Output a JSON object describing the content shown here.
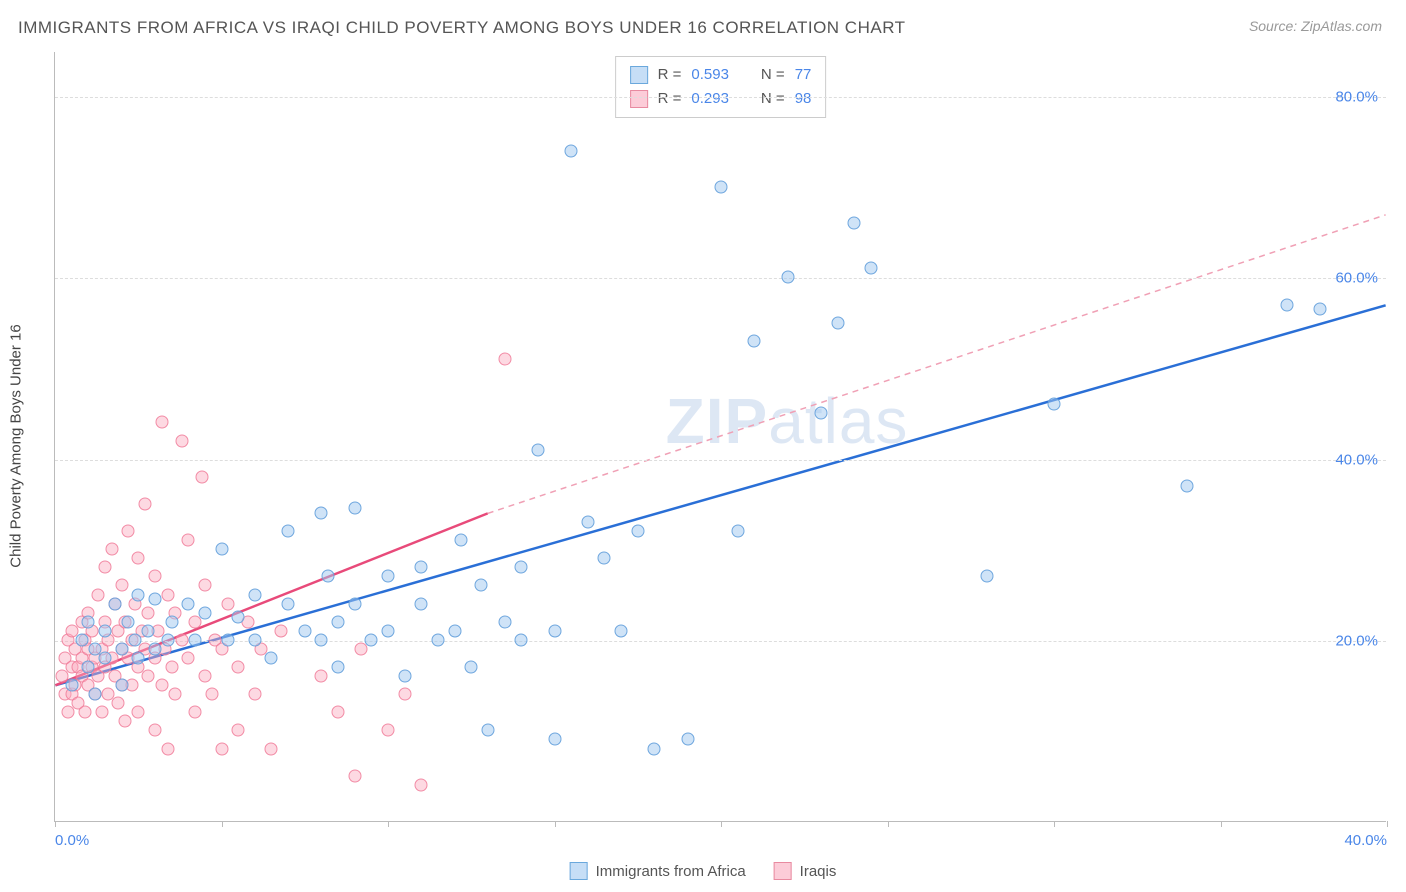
{
  "title": "IMMIGRANTS FROM AFRICA VS IRAQI CHILD POVERTY AMONG BOYS UNDER 16 CORRELATION CHART",
  "source_label": "Source: ",
  "source_value": "ZipAtlas.com",
  "y_axis_label": "Child Poverty Among Boys Under 16",
  "watermark_bold": "ZIP",
  "watermark_light": "atlas",
  "chart": {
    "type": "scatter",
    "xlim": [
      0,
      40
    ],
    "ylim": [
      0,
      85
    ],
    "x_ticks": [
      0,
      5,
      10,
      15,
      20,
      25,
      30,
      35,
      40
    ],
    "x_tick_labels": {
      "0": "0.0%",
      "40": "40.0%"
    },
    "y_ticks": [
      20,
      40,
      60,
      80
    ],
    "y_tick_labels": {
      "20": "20.0%",
      "40": "40.0%",
      "60": "60.0%",
      "80": "80.0%"
    },
    "background_color": "#ffffff",
    "grid_color": "#dddddd",
    "axis_color": "#bbbbbb",
    "tick_label_color": "#4a86e8",
    "series": [
      {
        "name": "Immigrants from Africa",
        "color_fill": "rgba(160,200,240,0.5)",
        "color_stroke": "#6aa8dc",
        "class": "blue",
        "R": 0.593,
        "N": 77,
        "trend": {
          "x1": 0,
          "y1": 15,
          "x2": 40,
          "y2": 57,
          "color": "#2a6fd6",
          "width": 2.5,
          "dash": "none"
        },
        "points": [
          [
            0.5,
            15
          ],
          [
            0.8,
            20
          ],
          [
            1,
            17
          ],
          [
            1,
            22
          ],
          [
            1.2,
            14
          ],
          [
            1.2,
            19
          ],
          [
            1.5,
            18
          ],
          [
            1.5,
            21
          ],
          [
            1.8,
            24
          ],
          [
            2,
            19
          ],
          [
            2,
            15
          ],
          [
            2.2,
            22
          ],
          [
            2.4,
            20
          ],
          [
            2.5,
            25
          ],
          [
            2.5,
            18
          ],
          [
            2.8,
            21
          ],
          [
            3,
            19
          ],
          [
            3,
            24.5
          ],
          [
            3.4,
            20
          ],
          [
            3.5,
            22
          ],
          [
            4,
            24
          ],
          [
            4.2,
            20
          ],
          [
            4.5,
            23
          ],
          [
            5,
            30
          ],
          [
            5.2,
            20
          ],
          [
            5.5,
            22.5
          ],
          [
            6,
            20
          ],
          [
            6,
            25
          ],
          [
            6.5,
            18
          ],
          [
            7,
            24
          ],
          [
            7,
            32
          ],
          [
            7.5,
            21
          ],
          [
            8,
            20
          ],
          [
            8,
            34
          ],
          [
            8.2,
            27
          ],
          [
            8.5,
            17
          ],
          [
            8.5,
            22
          ],
          [
            9,
            24
          ],
          [
            9,
            34.5
          ],
          [
            9.5,
            20
          ],
          [
            10,
            27
          ],
          [
            10,
            21
          ],
          [
            10.5,
            16
          ],
          [
            11,
            24
          ],
          [
            11,
            28
          ],
          [
            11.5,
            20
          ],
          [
            12,
            21
          ],
          [
            12.2,
            31
          ],
          [
            12.5,
            17
          ],
          [
            12.8,
            26
          ],
          [
            13,
            10
          ],
          [
            13.5,
            22
          ],
          [
            14,
            20
          ],
          [
            14,
            28
          ],
          [
            14.5,
            41
          ],
          [
            15,
            21
          ],
          [
            15,
            9
          ],
          [
            15.5,
            74
          ],
          [
            16,
            33
          ],
          [
            16.5,
            29
          ],
          [
            17,
            21
          ],
          [
            17.5,
            32
          ],
          [
            18,
            8
          ],
          [
            19,
            9
          ],
          [
            20,
            70
          ],
          [
            20.5,
            32
          ],
          [
            21,
            53
          ],
          [
            22,
            60
          ],
          [
            23,
            45
          ],
          [
            23.5,
            55
          ],
          [
            24,
            66
          ],
          [
            24.5,
            61
          ],
          [
            28,
            27
          ],
          [
            30,
            46
          ],
          [
            34,
            37
          ],
          [
            37,
            57
          ],
          [
            38,
            56.5
          ]
        ]
      },
      {
        "name": "Iraqis",
        "color_fill": "rgba(250,170,190,0.45)",
        "color_stroke": "#e88aa0",
        "class": "pink",
        "R": 0.293,
        "N": 98,
        "trend": {
          "x1": 0,
          "y1": 15,
          "x2": 13,
          "y2": 34,
          "color": "#e84a7a",
          "width": 2.5,
          "dash": "none",
          "ext_x2": 40,
          "ext_y2": 67,
          "ext_dash": "6,5",
          "ext_color": "#f0a0b5",
          "ext_width": 1.5
        },
        "points": [
          [
            0.2,
            16
          ],
          [
            0.3,
            14
          ],
          [
            0.3,
            18
          ],
          [
            0.4,
            20
          ],
          [
            0.4,
            12
          ],
          [
            0.5,
            17
          ],
          [
            0.5,
            21
          ],
          [
            0.5,
            14
          ],
          [
            0.6,
            19
          ],
          [
            0.6,
            15
          ],
          [
            0.7,
            17
          ],
          [
            0.7,
            13
          ],
          [
            0.8,
            18
          ],
          [
            0.8,
            22
          ],
          [
            0.8,
            16
          ],
          [
            0.9,
            20
          ],
          [
            0.9,
            12
          ],
          [
            1,
            19
          ],
          [
            1,
            15
          ],
          [
            1,
            23
          ],
          [
            1.1,
            17
          ],
          [
            1.1,
            21
          ],
          [
            1.2,
            14
          ],
          [
            1.2,
            18
          ],
          [
            1.3,
            25
          ],
          [
            1.3,
            16
          ],
          [
            1.4,
            19
          ],
          [
            1.4,
            12
          ],
          [
            1.5,
            22
          ],
          [
            1.5,
            17
          ],
          [
            1.5,
            28
          ],
          [
            1.6,
            20
          ],
          [
            1.6,
            14
          ],
          [
            1.7,
            18
          ],
          [
            1.7,
            30
          ],
          [
            1.8,
            16
          ],
          [
            1.8,
            24
          ],
          [
            1.9,
            21
          ],
          [
            1.9,
            13
          ],
          [
            2,
            19
          ],
          [
            2,
            26
          ],
          [
            2,
            15
          ],
          [
            2.1,
            22
          ],
          [
            2.1,
            11
          ],
          [
            2.2,
            18
          ],
          [
            2.2,
            32
          ],
          [
            2.3,
            20
          ],
          [
            2.3,
            15
          ],
          [
            2.4,
            24
          ],
          [
            2.5,
            17
          ],
          [
            2.5,
            29
          ],
          [
            2.5,
            12
          ],
          [
            2.6,
            21
          ],
          [
            2.7,
            19
          ],
          [
            2.7,
            35
          ],
          [
            2.8,
            16
          ],
          [
            2.8,
            23
          ],
          [
            3,
            18
          ],
          [
            3,
            27
          ],
          [
            3,
            10
          ],
          [
            3.1,
            21
          ],
          [
            3.2,
            15
          ],
          [
            3.2,
            44
          ],
          [
            3.3,
            19
          ],
          [
            3.4,
            25
          ],
          [
            3.4,
            8
          ],
          [
            3.5,
            17
          ],
          [
            3.6,
            23
          ],
          [
            3.6,
            14
          ],
          [
            3.8,
            20
          ],
          [
            3.8,
            42
          ],
          [
            4,
            18
          ],
          [
            4,
            31
          ],
          [
            4.2,
            12
          ],
          [
            4.2,
            22
          ],
          [
            4.4,
            38
          ],
          [
            4.5,
            16
          ],
          [
            4.5,
            26
          ],
          [
            4.7,
            14
          ],
          [
            4.8,
            20
          ],
          [
            5,
            19
          ],
          [
            5,
            8
          ],
          [
            5.2,
            24
          ],
          [
            5.5,
            17
          ],
          [
            5.5,
            10
          ],
          [
            5.8,
            22
          ],
          [
            6,
            14
          ],
          [
            6.2,
            19
          ],
          [
            6.5,
            8
          ],
          [
            6.8,
            21
          ],
          [
            8,
            16
          ],
          [
            8.5,
            12
          ],
          [
            9,
            5
          ],
          [
            9.2,
            19
          ],
          [
            10,
            10
          ],
          [
            10.5,
            14
          ],
          [
            11,
            4
          ],
          [
            13.5,
            51
          ]
        ]
      }
    ]
  },
  "legend_top": {
    "R_label": "R =",
    "N_label": "N ="
  },
  "legend_bottom": [
    {
      "class": "blue",
      "label": "Immigrants from Africa"
    },
    {
      "class": "pink",
      "label": "Iraqis"
    }
  ]
}
